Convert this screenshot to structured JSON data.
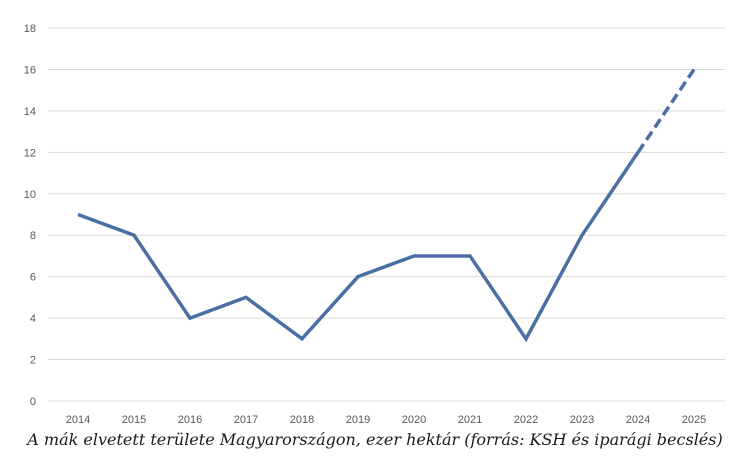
{
  "chart_data": {
    "type": "line",
    "x": [
      "2014",
      "2015",
      "2016",
      "2017",
      "2018",
      "2019",
      "2020",
      "2021",
      "2022",
      "2023",
      "2024",
      "2025"
    ],
    "series": [
      {
        "values": [
          9,
          8,
          4,
          5,
          3,
          6,
          7,
          7,
          3,
          8,
          12,
          16
        ],
        "line_style": "solid",
        "dashed_segment": [
          "2024",
          "2025"
        ],
        "color": "#4a6fa5"
      }
    ],
    "ylim": [
      0,
      18
    ],
    "yticks": [
      0,
      2,
      4,
      6,
      8,
      10,
      12,
      14,
      16,
      18
    ],
    "grid": true,
    "gridline_color": "#d9d9d9",
    "caption": "A mák elvetett területe Magyarországon, ezer hektár (forrás: KSH és iparági becslés)"
  }
}
